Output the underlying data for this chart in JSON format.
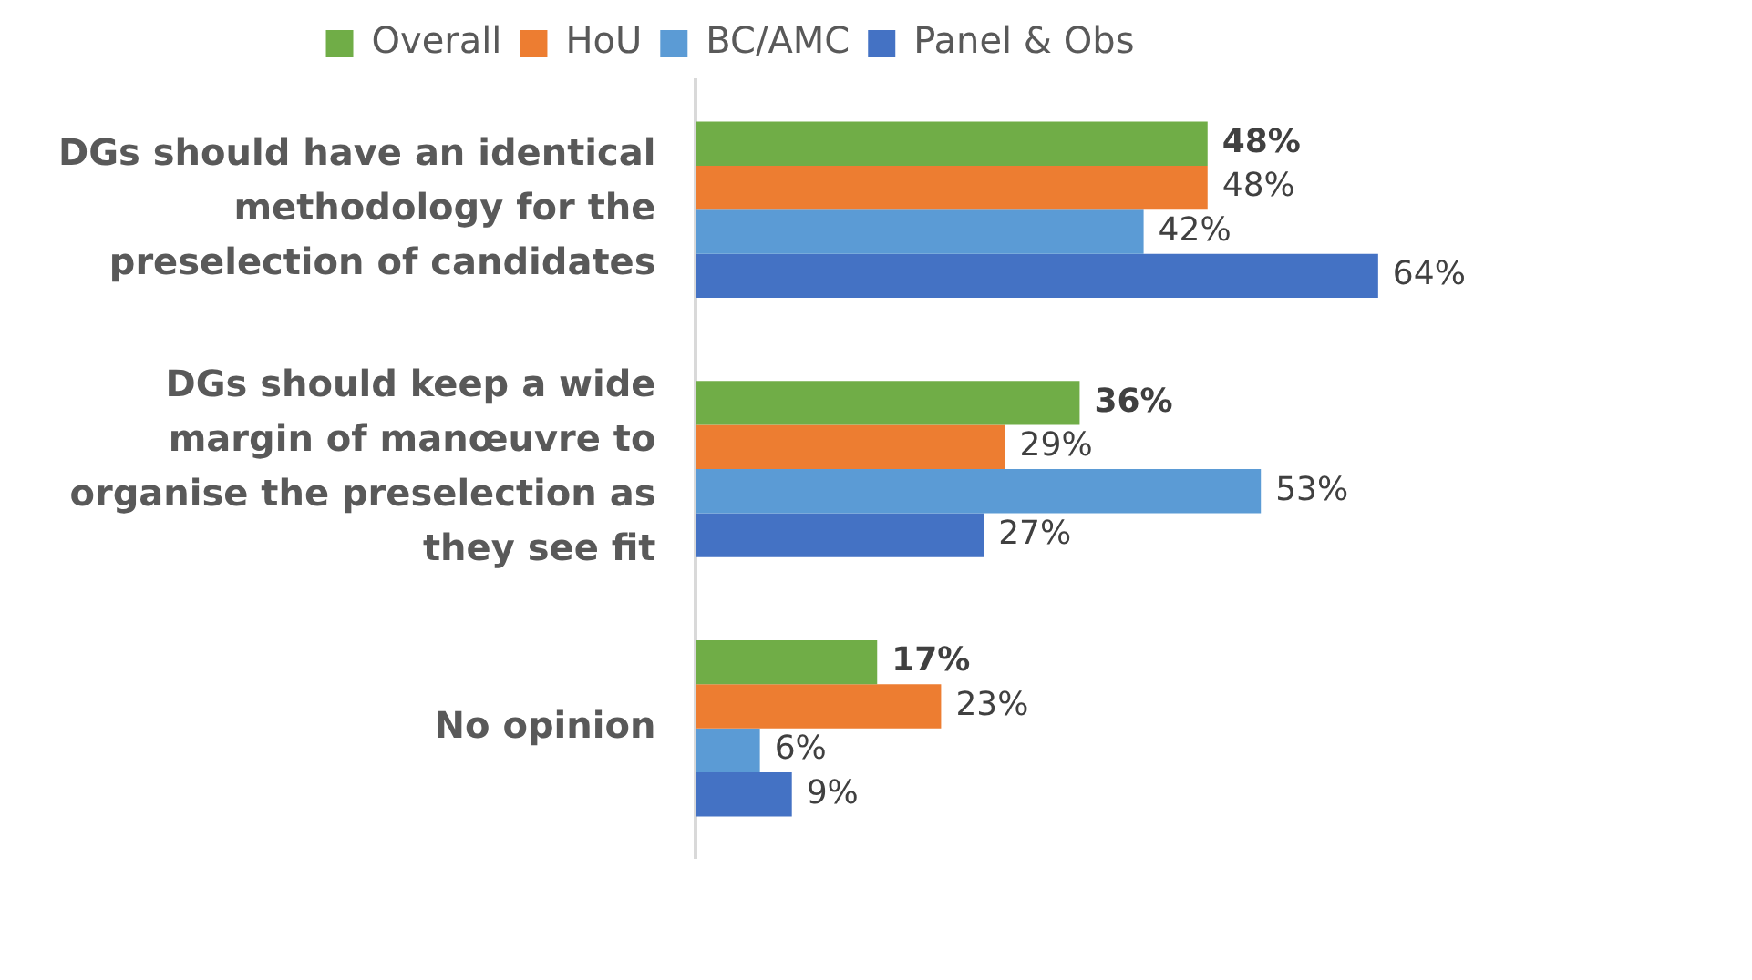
{
  "chart_data": {
    "type": "bar",
    "orientation": "horizontal",
    "legend": "top",
    "categories": [
      "DGs should have an identical methodology for the preselection of candidates",
      "DGs should keep a wide margin of manœuvre to organise the preselection as they see fit",
      "No opinion"
    ],
    "series": [
      {
        "name": "Overall",
        "color": "#70ad47",
        "values": [
          48,
          36,
          17
        ],
        "value_labels": [
          "48%",
          "36%",
          "17%"
        ]
      },
      {
        "name": "HoU",
        "color": "#ed7d31",
        "values": [
          48,
          29,
          23
        ],
        "value_labels": [
          "48%",
          "29%",
          "23%"
        ]
      },
      {
        "name": "BC/AMC",
        "color": "#5b9bd5",
        "values": [
          42,
          53,
          6
        ],
        "value_labels": [
          "42%",
          "53%",
          "6%"
        ]
      },
      {
        "name": "Panel & Obs",
        "color": "#4472c4",
        "values": [
          64,
          27,
          9
        ],
        "value_labels": [
          "64%",
          "27%",
          "9%"
        ]
      }
    ]
  }
}
